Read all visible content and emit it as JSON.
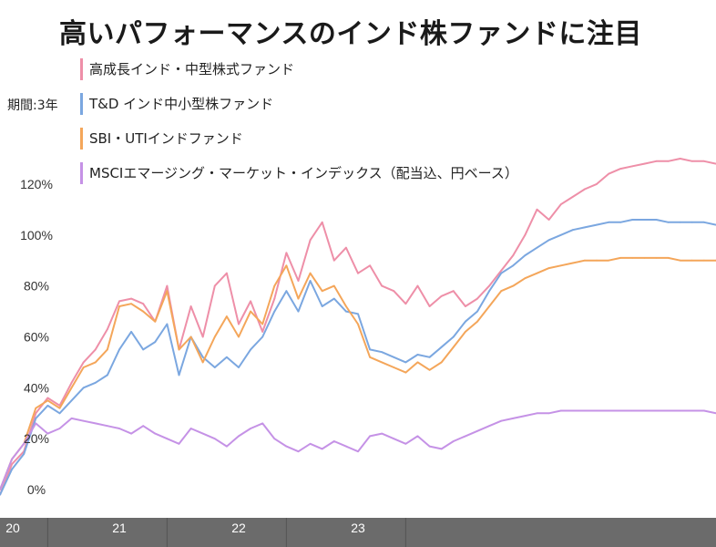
{
  "title": "高いパフォーマンスのインド株ファンドに注目",
  "period_label": "期間:3年",
  "colors": {
    "series": [
      "#ee8fa8",
      "#7ba7e0",
      "#f4a65a",
      "#c592e6"
    ],
    "axis_bar": "#6b6b6b"
  },
  "chart_data": {
    "type": "line",
    "title": "高いパフォーマンスのインド株ファンドに注目",
    "x_ticks": [
      "20",
      "21",
      "22",
      "23"
    ],
    "x_range": [
      2020.85,
      2023.85
    ],
    "y_ticks": [
      "0%",
      "20%",
      "40%",
      "60%",
      "80%",
      "100%",
      "120%"
    ],
    "ylim": [
      -10,
      135
    ],
    "grid": false,
    "legend_placement": "top-left",
    "series": [
      {
        "name": "高成長インド・中型株式ファンド",
        "x": [
          2020.85,
          2020.9,
          2020.95,
          2021.0,
          2021.05,
          2021.1,
          2021.15,
          2021.2,
          2021.25,
          2021.3,
          2021.35,
          2021.4,
          2021.45,
          2021.5,
          2021.55,
          2021.6,
          2021.65,
          2021.7,
          2021.75,
          2021.8,
          2021.85,
          2021.9,
          2021.95,
          2022.0,
          2022.05,
          2022.1,
          2022.15,
          2022.2,
          2022.25,
          2022.3,
          2022.35,
          2022.4,
          2022.45,
          2022.5,
          2022.55,
          2022.6,
          2022.65,
          2022.7,
          2022.75,
          2022.8,
          2022.85,
          2022.9,
          2022.95,
          2023.0,
          2023.05,
          2023.1,
          2023.15,
          2023.2,
          2023.25,
          2023.3,
          2023.35,
          2023.4,
          2023.45,
          2023.5,
          2023.55,
          2023.6,
          2023.65,
          2023.7,
          2023.75,
          2023.8,
          2023.85
        ],
        "values": [
          -2,
          10,
          15,
          30,
          36,
          33,
          42,
          50,
          55,
          63,
          74,
          75,
          73,
          66,
          80,
          55,
          72,
          60,
          80,
          85,
          65,
          74,
          62,
          75,
          93,
          82,
          98,
          105,
          90,
          95,
          85,
          88,
          80,
          78,
          73,
          80,
          72,
          76,
          78,
          72,
          75,
          80,
          86,
          92,
          100,
          110,
          106,
          112,
          115,
          118,
          120,
          124,
          126,
          127,
          128,
          129,
          129,
          130,
          129,
          129,
          128
        ]
      },
      {
        "name": "T&D インド中小型株ファンド",
        "x": [
          2020.85,
          2020.9,
          2020.95,
          2021.0,
          2021.05,
          2021.1,
          2021.15,
          2021.2,
          2021.25,
          2021.3,
          2021.35,
          2021.4,
          2021.45,
          2021.5,
          2021.55,
          2021.6,
          2021.65,
          2021.7,
          2021.75,
          2021.8,
          2021.85,
          2021.9,
          2021.95,
          2022.0,
          2022.05,
          2022.1,
          2022.15,
          2022.2,
          2022.25,
          2022.3,
          2022.35,
          2022.4,
          2022.45,
          2022.5,
          2022.55,
          2022.6,
          2022.65,
          2022.7,
          2022.75,
          2022.8,
          2022.85,
          2022.9,
          2022.95,
          2023.0,
          2023.05,
          2023.1,
          2023.15,
          2023.2,
          2023.25,
          2023.3,
          2023.35,
          2023.4,
          2023.45,
          2023.5,
          2023.55,
          2023.6,
          2023.65,
          2023.7,
          2023.75,
          2023.8,
          2023.85
        ],
        "values": [
          -2,
          8,
          14,
          28,
          33,
          30,
          35,
          40,
          42,
          45,
          55,
          62,
          55,
          58,
          65,
          45,
          60,
          52,
          48,
          52,
          48,
          55,
          60,
          70,
          78,
          70,
          82,
          72,
          75,
          70,
          69,
          55,
          54,
          52,
          50,
          53,
          52,
          56,
          60,
          66,
          70,
          78,
          85,
          88,
          92,
          95,
          98,
          100,
          102,
          103,
          104,
          105,
          105,
          106,
          106,
          106,
          105,
          105,
          105,
          105,
          104
        ]
      },
      {
        "name": "SBI・UTIインドファンド",
        "x": [
          2020.85,
          2020.9,
          2020.95,
          2021.0,
          2021.05,
          2021.1,
          2021.15,
          2021.2,
          2021.25,
          2021.3,
          2021.35,
          2021.4,
          2021.45,
          2021.5,
          2021.55,
          2021.6,
          2021.65,
          2021.7,
          2021.75,
          2021.8,
          2021.85,
          2021.9,
          2021.95,
          2022.0,
          2022.05,
          2022.1,
          2022.15,
          2022.2,
          2022.25,
          2022.3,
          2022.35,
          2022.4,
          2022.45,
          2022.5,
          2022.55,
          2022.6,
          2022.65,
          2022.7,
          2022.75,
          2022.8,
          2022.85,
          2022.9,
          2022.95,
          2023.0,
          2023.05,
          2023.1,
          2023.15,
          2023.2,
          2023.25,
          2023.3,
          2023.35,
          2023.4,
          2023.45,
          2023.5,
          2023.55,
          2023.6,
          2023.65,
          2023.7,
          2023.75,
          2023.8,
          2023.85
        ],
        "values": [
          0,
          12,
          18,
          32,
          35,
          32,
          40,
          48,
          50,
          55,
          72,
          73,
          70,
          66,
          78,
          55,
          60,
          50,
          60,
          68,
          60,
          70,
          65,
          80,
          88,
          75,
          85,
          78,
          80,
          72,
          65,
          52,
          50,
          48,
          46,
          50,
          47,
          50,
          56,
          62,
          66,
          72,
          78,
          80,
          83,
          85,
          87,
          88,
          89,
          90,
          90,
          90,
          91,
          91,
          91,
          91,
          91,
          90,
          90,
          90,
          90
        ]
      },
      {
        "name": "MSCIエマージング・マーケット・インデックス（配当込、円ベース）",
        "x": [
          2020.85,
          2020.9,
          2020.95,
          2021.0,
          2021.05,
          2021.1,
          2021.15,
          2021.2,
          2021.25,
          2021.3,
          2021.35,
          2021.4,
          2021.45,
          2021.5,
          2021.55,
          2021.6,
          2021.65,
          2021.7,
          2021.75,
          2021.8,
          2021.85,
          2021.9,
          2021.95,
          2022.0,
          2022.05,
          2022.1,
          2022.15,
          2022.2,
          2022.25,
          2022.3,
          2022.35,
          2022.4,
          2022.45,
          2022.5,
          2022.55,
          2022.6,
          2022.65,
          2022.7,
          2022.75,
          2022.8,
          2022.85,
          2022.9,
          2022.95,
          2023.0,
          2023.05,
          2023.1,
          2023.15,
          2023.2,
          2023.25,
          2023.3,
          2023.35,
          2023.4,
          2023.45,
          2023.5,
          2023.55,
          2023.6,
          2023.65,
          2023.7,
          2023.75,
          2023.8,
          2023.85
        ],
        "values": [
          0,
          12,
          18,
          26,
          22,
          24,
          28,
          27,
          26,
          25,
          24,
          22,
          25,
          22,
          20,
          18,
          24,
          22,
          20,
          17,
          21,
          24,
          26,
          20,
          17,
          15,
          18,
          16,
          19,
          17,
          15,
          21,
          22,
          20,
          18,
          21,
          17,
          16,
          19,
          21,
          23,
          25,
          27,
          28,
          29,
          30,
          30,
          31,
          31,
          31,
          31,
          31,
          31,
          31,
          31,
          31,
          31,
          31,
          31,
          31,
          30
        ]
      }
    ]
  }
}
